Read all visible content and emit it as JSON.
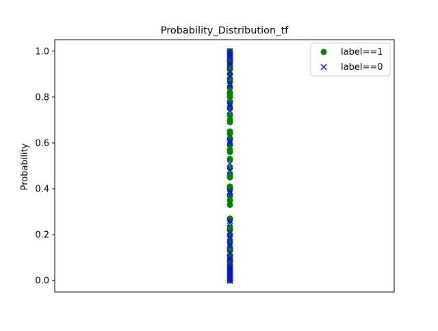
{
  "chart_data": {
    "type": "scatter",
    "title": "Probability_Distribution_tf",
    "xlabel": "",
    "ylabel": "Probability",
    "x_ticks_visible": false,
    "ylim": [
      -0.05,
      1.05
    ],
    "yticks": [
      {
        "value": 0.0,
        "label": "0.0"
      },
      {
        "value": 0.2,
        "label": "0.2"
      },
      {
        "value": 0.4,
        "label": "0.4"
      },
      {
        "value": 0.6,
        "label": "0.6"
      },
      {
        "value": 0.8,
        "label": "0.8"
      },
      {
        "value": 1.0,
        "label": "1.0"
      }
    ],
    "grid": false,
    "legend": {
      "position": "top-right"
    },
    "series": [
      {
        "name": "label==1",
        "marker": "circle",
        "color": "#008000",
        "x": 0,
        "values": [
          0.0,
          0.01,
          0.02,
          0.03,
          0.04,
          0.05,
          0.06,
          0.08,
          0.09,
          0.11,
          0.13,
          0.14,
          0.17,
          0.2,
          0.22,
          0.23,
          0.27,
          0.33,
          0.35,
          0.37,
          0.4,
          0.41,
          0.45,
          0.46,
          0.49,
          0.53,
          0.56,
          0.57,
          0.59,
          0.62,
          0.64,
          0.65,
          0.69,
          0.7,
          0.72,
          0.75,
          0.78,
          0.8,
          0.81,
          0.82,
          0.84,
          0.87,
          0.88,
          0.9,
          0.92,
          0.93,
          0.95,
          0.96,
          0.97,
          0.98,
          0.99,
          1.0
        ]
      },
      {
        "name": "label==0",
        "marker": "x",
        "color": "#0000ff",
        "x": 0,
        "values": [
          0.0,
          0.0,
          0.01,
          0.01,
          0.02,
          0.03,
          0.04,
          0.05,
          0.06,
          0.07,
          0.09,
          0.1,
          0.12,
          0.15,
          0.16,
          0.18,
          0.19,
          0.21,
          0.25,
          0.26,
          0.38,
          0.39,
          0.48,
          0.51,
          0.6,
          0.61,
          0.74,
          0.76,
          0.77,
          0.85,
          0.86,
          0.89,
          0.91,
          0.94,
          0.95,
          0.97,
          0.98,
          0.99,
          1.0
        ]
      }
    ]
  }
}
